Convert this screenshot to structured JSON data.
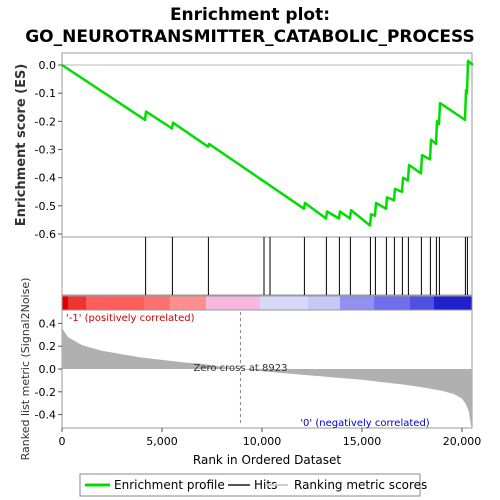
{
  "title_line1": "Enrichment plot:",
  "title_line2": "GO_NEUROTRANSMITTER_CATABOLIC_PROCESS",
  "colors": {
    "es_line": "#00dd00",
    "hits": "#000000",
    "metric_fill": "#b0b0b0",
    "pos_label": "#cc0000",
    "neg_label": "#0000cc"
  },
  "chart_data": [
    {
      "type": "line",
      "name": "enrichment-score",
      "ylabel": "Enrichment score (ES)",
      "ylim": [
        -0.6,
        0.0
      ],
      "yticks": [
        0.0,
        -0.1,
        -0.2,
        -0.3,
        -0.4,
        -0.5,
        -0.6
      ],
      "ytick_labels": [
        "0.0",
        "-0.1",
        "-0.2",
        "-0.3",
        "-0.4",
        "-0.5",
        "-0.6"
      ],
      "xlim": [
        0,
        20500
      ],
      "points": [
        [
          0,
          0.0
        ],
        [
          4150,
          -0.195
        ],
        [
          4200,
          -0.165
        ],
        [
          5500,
          -0.225
        ],
        [
          5550,
          -0.205
        ],
        [
          7300,
          -0.29
        ],
        [
          7350,
          -0.28
        ],
        [
          12100,
          -0.51
        ],
        [
          12150,
          -0.49
        ],
        [
          13200,
          -0.545
        ],
        [
          13250,
          -0.52
        ],
        [
          13850,
          -0.545
        ],
        [
          13900,
          -0.52
        ],
        [
          14400,
          -0.545
        ],
        [
          14450,
          -0.515
        ],
        [
          15400,
          -0.57
        ],
        [
          15450,
          -0.53
        ],
        [
          15650,
          -0.535
        ],
        [
          15700,
          -0.49
        ],
        [
          16200,
          -0.51
        ],
        [
          16250,
          -0.47
        ],
        [
          16600,
          -0.48
        ],
        [
          16650,
          -0.44
        ],
        [
          17000,
          -0.45
        ],
        [
          17050,
          -0.4
        ],
        [
          17300,
          -0.41
        ],
        [
          17350,
          -0.355
        ],
        [
          17950,
          -0.385
        ],
        [
          18000,
          -0.32
        ],
        [
          18400,
          -0.335
        ],
        [
          18450,
          -0.265
        ],
        [
          18700,
          -0.28
        ],
        [
          18750,
          -0.2
        ],
        [
          18850,
          -0.21
        ],
        [
          18900,
          -0.135
        ],
        [
          20150,
          -0.195
        ],
        [
          20200,
          -0.09
        ],
        [
          20250,
          -0.1
        ],
        [
          20300,
          0.015
        ],
        [
          20550,
          0.0
        ]
      ]
    },
    {
      "type": "scatter",
      "name": "hits",
      "x": [
        4180,
        5520,
        7320,
        10100,
        10400,
        12120,
        13220,
        13870,
        14420,
        15420,
        15670,
        16220,
        16620,
        17020,
        17320,
        17970,
        18420,
        18720,
        18870,
        20170,
        20270
      ]
    },
    {
      "type": "area",
      "name": "ranked-list-metric",
      "ylabel": "Ranked list metric (Signal2Noise)",
      "xlabel": "Rank in Ordered Dataset",
      "ylim": [
        -0.5,
        0.5
      ],
      "yticks": [
        0.4,
        0.2,
        0.0,
        -0.2,
        -0.4
      ],
      "ytick_labels": [
        "0.4",
        "0.2",
        "0.0",
        "-0.2",
        "-0.4"
      ],
      "xticks": [
        0,
        5000,
        10000,
        15000,
        20000
      ],
      "xtick_labels": [
        "0",
        "5,000",
        "10,000",
        "15,000",
        "20,000"
      ],
      "xlim": [
        0,
        20500
      ],
      "points": [
        [
          0,
          0.36
        ],
        [
          300,
          0.28
        ],
        [
          1000,
          0.21
        ],
        [
          2000,
          0.16
        ],
        [
          3000,
          0.13
        ],
        [
          4000,
          0.1
        ],
        [
          5000,
          0.08
        ],
        [
          6000,
          0.06
        ],
        [
          7000,
          0.045
        ],
        [
          8000,
          0.02
        ],
        [
          8923,
          0.0
        ],
        [
          10000,
          -0.02
        ],
        [
          11000,
          -0.035
        ],
        [
          12000,
          -0.05
        ],
        [
          13000,
          -0.065
        ],
        [
          14000,
          -0.08
        ],
        [
          15000,
          -0.095
        ],
        [
          16000,
          -0.115
        ],
        [
          17000,
          -0.135
        ],
        [
          18000,
          -0.16
        ],
        [
          19000,
          -0.19
        ],
        [
          19600,
          -0.22
        ],
        [
          20000,
          -0.26
        ],
        [
          20200,
          -0.31
        ],
        [
          20350,
          -0.38
        ],
        [
          20450,
          -0.5
        ],
        [
          20500,
          -0.52
        ]
      ],
      "zero_cross_label": "Zero cross at 8923",
      "zero_cross": 8923,
      "pos_label": "'-1' (positively correlated)",
      "neg_label": "'0' (negatively correlated)"
    }
  ],
  "heatmap_bar": {
    "segments": [
      {
        "from": 0,
        "to": 300,
        "color": "#e00000"
      },
      {
        "from": 300,
        "to": 1200,
        "color": "#ee3333"
      },
      {
        "from": 1200,
        "to": 4100,
        "color": "#ff5c5c"
      },
      {
        "from": 4100,
        "to": 5400,
        "color": "#ff7070"
      },
      {
        "from": 5400,
        "to": 7200,
        "color": "#ff8f8f"
      },
      {
        "from": 7200,
        "to": 9900,
        "color": "#f7b8e0"
      },
      {
        "from": 9900,
        "to": 12300,
        "color": "#d8d8f8"
      },
      {
        "from": 12300,
        "to": 13900,
        "color": "#c8c8f6"
      },
      {
        "from": 13900,
        "to": 15600,
        "color": "#9090f0"
      },
      {
        "from": 15600,
        "to": 17400,
        "color": "#7070ee"
      },
      {
        "from": 17400,
        "to": 18600,
        "color": "#5050e0"
      },
      {
        "from": 18600,
        "to": 20500,
        "color": "#2020cc"
      }
    ]
  },
  "legend": {
    "items": [
      {
        "label": "Enrichment profile",
        "color": "#00dd00",
        "style": "line-thick"
      },
      {
        "label": "Hits",
        "color": "#555555",
        "style": "line"
      },
      {
        "label": "Ranking metric scores",
        "color": "#cccccc",
        "style": "line"
      }
    ]
  }
}
